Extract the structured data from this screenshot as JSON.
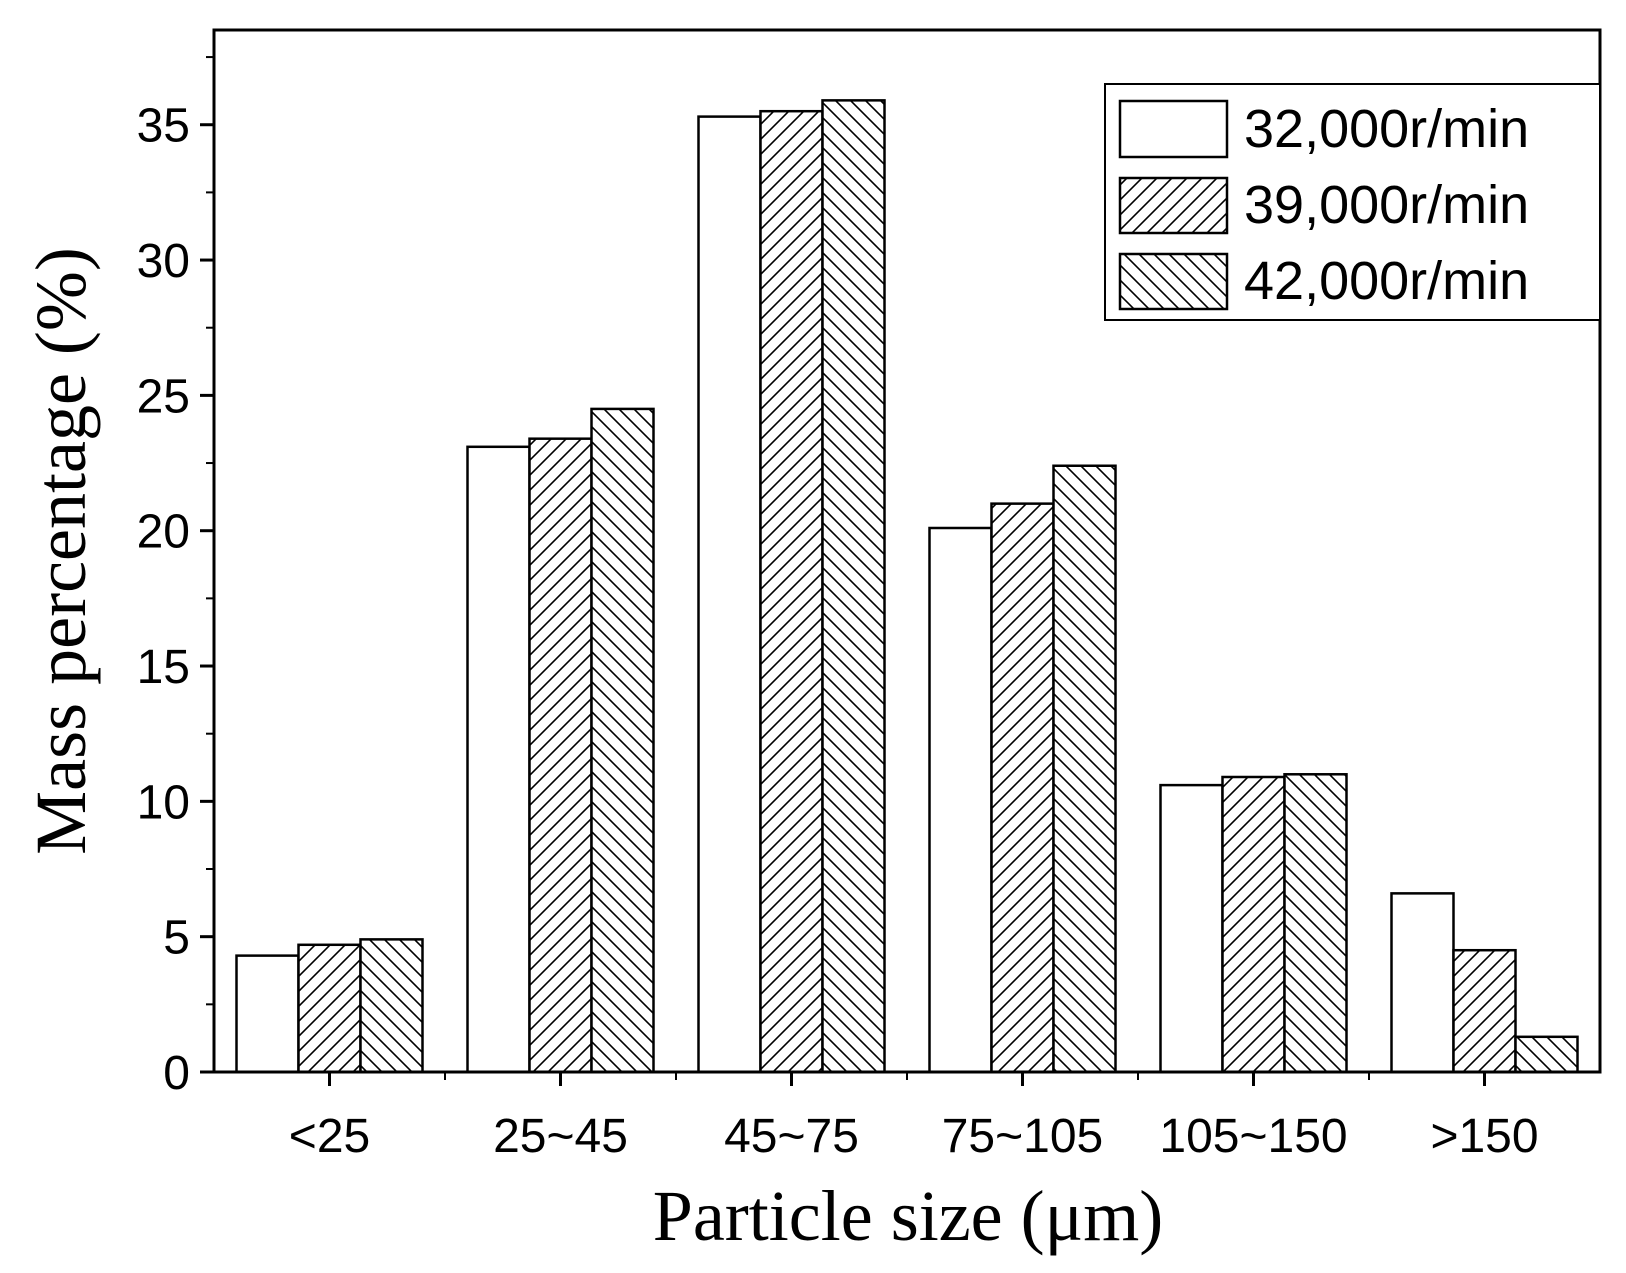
{
  "chart_data": {
    "type": "bar",
    "title": "",
    "xlabel": "Particle size (μm)",
    "ylabel": "Mass percentage (%)",
    "ylim": [
      0,
      38.5
    ],
    "yticks": [
      0,
      5,
      10,
      15,
      20,
      25,
      30,
      35
    ],
    "ytick_labels": [
      "0",
      "5",
      "10",
      "15",
      "20",
      "25",
      "30",
      "35"
    ],
    "categories": [
      "<25",
      "25~45",
      "45~75",
      "75~105",
      "105~150",
      ">150"
    ],
    "series": [
      {
        "name": "32,000r/min",
        "pattern": "none",
        "values": [
          4.3,
          23.1,
          35.3,
          20.1,
          10.6,
          6.6
        ]
      },
      {
        "name": "39,000r/min",
        "pattern": "forward-hatch",
        "values": [
          4.7,
          23.4,
          35.5,
          21.0,
          10.9,
          4.5
        ]
      },
      {
        "name": "42,000r/min",
        "pattern": "back-hatch",
        "values": [
          4.9,
          24.5,
          35.9,
          22.4,
          11.0,
          1.3
        ]
      }
    ],
    "legend_position": "top-right",
    "grid": false,
    "colors": {
      "bar_fill": "#ffffff",
      "stroke": "#000000",
      "background": "#ffffff"
    }
  }
}
